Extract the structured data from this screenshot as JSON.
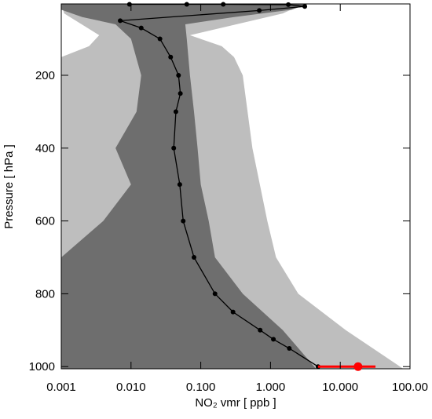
{
  "chart_data": {
    "type": "profile",
    "xlabel": "NO₂ vmr [ ppb ]",
    "ylabel": "Pressure [ hPa ]",
    "xlog": true,
    "xlim": [
      0.001,
      100
    ],
    "xticks": [
      0.001,
      {
        "value": 0.01,
        "label": "0.010"
      },
      {
        "value": 0.1,
        "label": "0.100"
      },
      {
        "value": 1,
        "label": "1.000"
      },
      {
        "value": 10,
        "label": "10.000"
      },
      {
        "value": 100,
        "label": "100.00"
      }
    ],
    "ylim": [
      1006,
      4
    ],
    "yticks": [
      200,
      400,
      600,
      800,
      1000
    ],
    "bands": [
      {
        "color": "#bebebe",
        "y": [
          4,
          30,
          90,
          120,
          150,
          200,
          400,
          600,
          700,
          800,
          900,
          1006
        ],
        "low": [
          0.001,
          0.0011,
          0.0035,
          0.0025,
          0.001,
          0.001,
          0.001,
          0.001,
          0.001,
          0.001,
          0.001,
          0.001
        ],
        "high": [
          3,
          1.5,
          0.07,
          0.2,
          0.3,
          0.4,
          0.55,
          0.9,
          1.2,
          2.5,
          12,
          80
        ]
      },
      {
        "color": "#6e6e6e",
        "y": [
          4,
          20,
          40,
          60,
          100,
          200,
          300,
          400,
          500,
          600,
          700,
          800,
          900,
          1006
        ],
        "low": [
          0.001,
          0.001,
          0.002,
          0.006,
          0.01,
          0.014,
          0.012,
          0.006,
          0.01,
          0.004,
          0.001,
          0.001,
          0.001,
          0.001
        ],
        "high": [
          3.5,
          2.0,
          0.3,
          0.06,
          0.063,
          0.07,
          0.08,
          0.09,
          0.1,
          0.13,
          0.16,
          0.4,
          1.5,
          4.5
        ]
      }
    ],
    "profile": {
      "color": "#000000",
      "y": [
        5,
        5,
        5,
        6,
        11,
        22,
        50,
        70,
        100,
        150,
        200,
        250,
        300,
        400,
        500,
        600,
        700,
        800,
        850,
        900,
        925,
        950,
        1000
      ],
      "x": [
        0.0095,
        0.063,
        0.21,
        1.8,
        3.1,
        0.69,
        0.007,
        0.014,
        0.026,
        0.037,
        0.048,
        0.051,
        0.044,
        0.041,
        0.05,
        0.056,
        0.08,
        0.16,
        0.29,
        0.71,
        1.1,
        1.86,
        4.8
      ]
    },
    "surface": {
      "color": "#ff0000",
      "y": 1000,
      "x": 18,
      "xerr": [
        4.8,
        32
      ]
    }
  }
}
